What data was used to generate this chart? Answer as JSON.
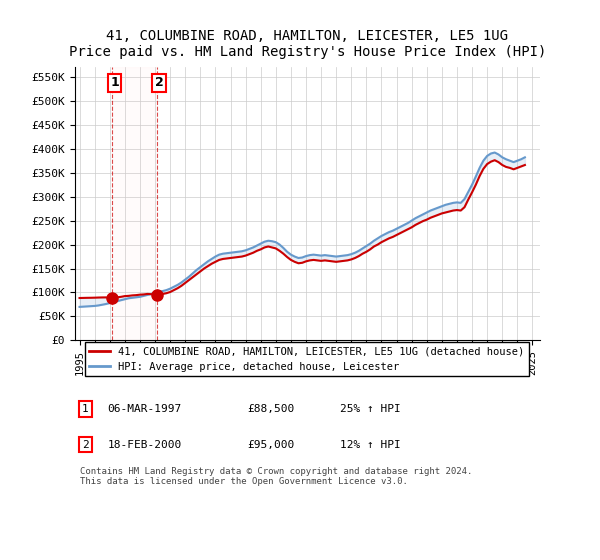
{
  "title": "41, COLUMBINE ROAD, HAMILTON, LEICESTER, LE5 1UG",
  "subtitle": "Price paid vs. HM Land Registry's House Price Index (HPI)",
  "ylabel_ticks": [
    "£0",
    "£50K",
    "£100K",
    "£150K",
    "£200K",
    "£250K",
    "£300K",
    "£350K",
    "£400K",
    "£450K",
    "£500K",
    "£550K"
  ],
  "ytick_values": [
    0,
    50000,
    100000,
    150000,
    200000,
    250000,
    300000,
    350000,
    400000,
    450000,
    500000,
    550000
  ],
  "ylim": [
    0,
    570000
  ],
  "xlim_start": 1995.0,
  "xlim_end": 2025.5,
  "sale1_x": 1997.18,
  "sale1_y": 88500,
  "sale2_x": 2000.13,
  "sale2_y": 95000,
  "sale_color": "#cc0000",
  "hpi_color": "#6699cc",
  "label_price": "41, COLUMBINE ROAD, HAMILTON, LEICESTER, LE5 1UG (detached house)",
  "label_hpi": "HPI: Average price, detached house, Leicester",
  "table_row1": [
    "1",
    "06-MAR-1997",
    "£88,500",
    "25% ↑ HPI"
  ],
  "table_row2": [
    "2",
    "18-FEB-2000",
    "£95,000",
    "12% ↑ HPI"
  ],
  "footnote": "Contains HM Land Registry data © Crown copyright and database right 2024.\nThis data is licensed under the Open Government Licence v3.0.",
  "hpi_x": [
    1995.0,
    1995.25,
    1995.5,
    1995.75,
    1996.0,
    1996.25,
    1996.5,
    1996.75,
    1997.0,
    1997.25,
    1997.5,
    1997.75,
    1998.0,
    1998.25,
    1998.5,
    1998.75,
    1999.0,
    1999.25,
    1999.5,
    1999.75,
    2000.0,
    2000.25,
    2000.5,
    2000.75,
    2001.0,
    2001.25,
    2001.5,
    2001.75,
    2002.0,
    2002.25,
    2002.5,
    2002.75,
    2003.0,
    2003.25,
    2003.5,
    2003.75,
    2004.0,
    2004.25,
    2004.5,
    2004.75,
    2005.0,
    2005.25,
    2005.5,
    2005.75,
    2006.0,
    2006.25,
    2006.5,
    2006.75,
    2007.0,
    2007.25,
    2007.5,
    2007.75,
    2008.0,
    2008.25,
    2008.5,
    2008.75,
    2009.0,
    2009.25,
    2009.5,
    2009.75,
    2010.0,
    2010.25,
    2010.5,
    2010.75,
    2011.0,
    2011.25,
    2011.5,
    2011.75,
    2012.0,
    2012.25,
    2012.5,
    2012.75,
    2013.0,
    2013.25,
    2013.5,
    2013.75,
    2014.0,
    2014.25,
    2014.5,
    2014.75,
    2015.0,
    2015.25,
    2015.5,
    2015.75,
    2016.0,
    2016.25,
    2016.5,
    2016.75,
    2017.0,
    2017.25,
    2017.5,
    2017.75,
    2018.0,
    2018.25,
    2018.5,
    2018.75,
    2019.0,
    2019.25,
    2019.5,
    2019.75,
    2020.0,
    2020.25,
    2020.5,
    2020.75,
    2021.0,
    2021.25,
    2021.5,
    2021.75,
    2022.0,
    2022.25,
    2022.5,
    2022.75,
    2023.0,
    2023.25,
    2023.5,
    2023.75,
    2024.0,
    2024.25,
    2024.5
  ],
  "hpi_y": [
    70000,
    70500,
    71000,
    71500,
    72000,
    73000,
    74500,
    76000,
    78000,
    80000,
    82000,
    84000,
    86000,
    88000,
    89000,
    90000,
    91000,
    93000,
    95000,
    97000,
    99000,
    101000,
    103000,
    105000,
    108000,
    112000,
    116000,
    121000,
    127000,
    133000,
    140000,
    147000,
    153000,
    159000,
    165000,
    170000,
    175000,
    179000,
    181000,
    182000,
    183000,
    184000,
    185000,
    186000,
    188000,
    191000,
    194000,
    198000,
    202000,
    206000,
    208000,
    207000,
    205000,
    200000,
    193000,
    185000,
    179000,
    175000,
    172000,
    173000,
    176000,
    178000,
    179000,
    178000,
    177000,
    178000,
    177000,
    176000,
    175000,
    176000,
    177000,
    178000,
    180000,
    183000,
    187000,
    192000,
    197000,
    202000,
    208000,
    213000,
    218000,
    222000,
    226000,
    229000,
    233000,
    237000,
    241000,
    245000,
    250000,
    255000,
    259000,
    263000,
    267000,
    271000,
    274000,
    277000,
    280000,
    283000,
    285000,
    287000,
    288000,
    287000,
    295000,
    310000,
    325000,
    342000,
    360000,
    375000,
    385000,
    390000,
    392000,
    388000,
    382000,
    378000,
    375000,
    372000,
    375000,
    378000,
    382000
  ],
  "price_x": [
    1995.0,
    1995.25,
    1995.5,
    1995.75,
    1996.0,
    1996.25,
    1996.5,
    1996.75,
    1997.0,
    1997.25,
    1997.5,
    1997.75,
    1998.0,
    1998.25,
    1998.5,
    1998.75,
    1999.0,
    1999.25,
    1999.5,
    1999.75,
    2000.0,
    2000.25,
    2000.5,
    2000.75,
    2001.0,
    2001.25,
    2001.5,
    2001.75,
    2002.0,
    2002.25,
    2002.5,
    2002.75,
    2003.0,
    2003.25,
    2003.5,
    2003.75,
    2004.0,
    2004.25,
    2004.5,
    2004.75,
    2005.0,
    2005.25,
    2005.5,
    2005.75,
    2006.0,
    2006.25,
    2006.5,
    2006.75,
    2007.0,
    2007.25,
    2007.5,
    2007.75,
    2008.0,
    2008.25,
    2008.5,
    2008.75,
    2009.0,
    2009.25,
    2009.5,
    2009.75,
    2010.0,
    2010.25,
    2010.5,
    2010.75,
    2011.0,
    2011.25,
    2011.5,
    2011.75,
    2012.0,
    2012.25,
    2012.5,
    2012.75,
    2013.0,
    2013.25,
    2013.5,
    2013.75,
    2014.0,
    2014.25,
    2014.5,
    2014.75,
    2015.0,
    2015.25,
    2015.5,
    2015.75,
    2016.0,
    2016.25,
    2016.5,
    2016.75,
    2017.0,
    2017.25,
    2017.5,
    2017.75,
    2018.0,
    2018.25,
    2018.5,
    2018.75,
    2019.0,
    2019.25,
    2019.5,
    2019.75,
    2020.0,
    2020.25,
    2020.5,
    2020.75,
    2021.0,
    2021.25,
    2021.5,
    2021.75,
    2022.0,
    2022.25,
    2022.5,
    2022.75,
    2023.0,
    2023.25,
    2023.5,
    2023.75,
    2024.0,
    2024.25,
    2024.5
  ],
  "price_y": [
    88500,
    88700,
    88900,
    89000,
    89200,
    89500,
    89700,
    89800,
    88500,
    89000,
    90000,
    91000,
    92500,
    93000,
    94000,
    94500,
    95500,
    96000,
    97000,
    96500,
    95000,
    96000,
    97000,
    98500,
    101000,
    105000,
    109000,
    114000,
    120000,
    126000,
    132000,
    138000,
    144000,
    150000,
    155000,
    160000,
    164000,
    168000,
    170000,
    171000,
    172000,
    173000,
    174000,
    175000,
    177000,
    180000,
    183000,
    187000,
    190000,
    194000,
    196000,
    194000,
    192000,
    187000,
    181000,
    174000,
    168000,
    164000,
    161000,
    162000,
    165000,
    167000,
    168000,
    167000,
    166000,
    167000,
    166000,
    165000,
    164000,
    165000,
    166000,
    167000,
    169000,
    172000,
    176000,
    181000,
    185000,
    190000,
    196000,
    200000,
    205000,
    209000,
    213000,
    216000,
    220000,
    224000,
    228000,
    232000,
    236000,
    241000,
    245000,
    249000,
    252000,
    256000,
    259000,
    262000,
    265000,
    267000,
    269000,
    271000,
    272000,
    271000,
    278000,
    294000,
    309000,
    325000,
    343000,
    358000,
    368000,
    373000,
    376000,
    372000,
    366000,
    362000,
    360000,
    357000,
    360000,
    363000,
    366000
  ],
  "bg_color": "#ffffff",
  "grid_color": "#cccccc",
  "label_box_color": "#ffcccc",
  "sale_marker_size": 8,
  "xtick_years": [
    1995,
    1996,
    1997,
    1998,
    1999,
    2000,
    2001,
    2002,
    2003,
    2004,
    2005,
    2006,
    2007,
    2008,
    2009,
    2010,
    2011,
    2012,
    2013,
    2014,
    2015,
    2016,
    2017,
    2018,
    2019,
    2020,
    2021,
    2022,
    2023,
    2024,
    2025
  ]
}
